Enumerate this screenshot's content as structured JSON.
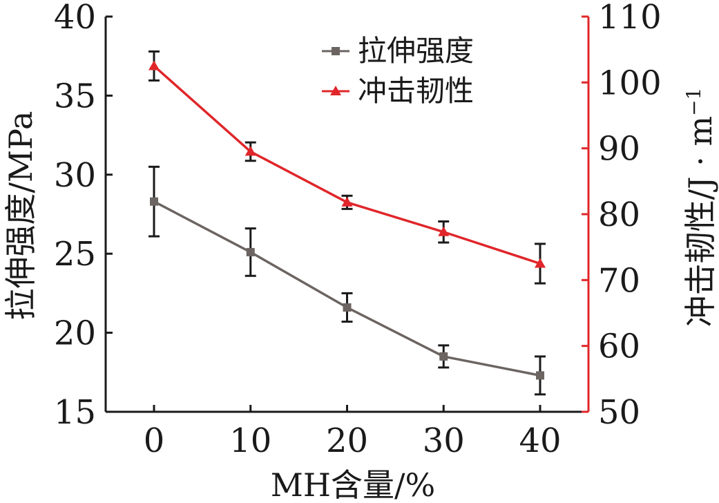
{
  "chart_data": {
    "type": "line",
    "xlabel": "MH含量/%",
    "ylabel_left": "拉伸强度/MPa",
    "ylabel_right": "冲击韧性/J",
    "ylabel_right_unit": "m",
    "ylabel_right_exponent": "−1",
    "x": [
      0,
      10,
      20,
      30,
      40
    ],
    "x_ticks": [
      "0",
      "10",
      "20",
      "30",
      "40"
    ],
    "y_left_lim": [
      15,
      40
    ],
    "y_left_ticks": [
      "15",
      "20",
      "25",
      "30",
      "35",
      "40"
    ],
    "y_right_lim": [
      50,
      110
    ],
    "y_right_ticks": [
      "50",
      "60",
      "70",
      "80",
      "90",
      "100",
      "110"
    ],
    "grid": false,
    "legend_position": "top-right",
    "series": [
      {
        "name": "拉伸强度",
        "axis": "left",
        "color": "#6b6461",
        "marker": "square",
        "values": [
          28.3,
          25.1,
          21.6,
          18.5,
          17.3
        ],
        "error": [
          2.2,
          1.5,
          0.9,
          0.7,
          1.2
        ]
      },
      {
        "name": "冲击韧性",
        "axis": "right",
        "color": "#e0262a",
        "marker": "triangle",
        "values": [
          102.5,
          89.5,
          81.8,
          77.3,
          72.5
        ],
        "error": [
          2.2,
          1.4,
          1.0,
          1.6,
          3.0
        ]
      }
    ]
  }
}
